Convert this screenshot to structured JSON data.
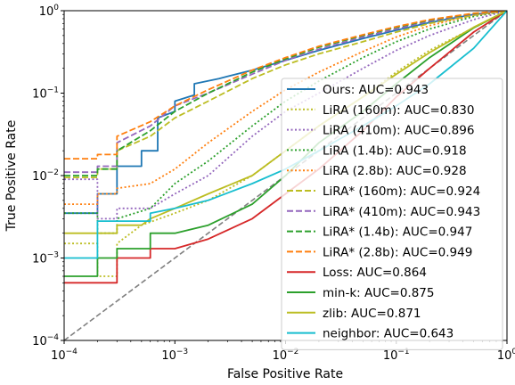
{
  "chart_data": {
    "type": "line",
    "title": "",
    "xlabel": "False Positive Rate",
    "ylabel": "True Positive Rate",
    "xscale": "log",
    "yscale": "log",
    "xlim": [
      0.0001,
      1
    ],
    "ylim": [
      0.0001,
      1
    ],
    "grid": false,
    "legend_position": "lower right",
    "xticks": [
      {
        "value": 0.0001,
        "base": "10",
        "exp": "−4"
      },
      {
        "value": 0.001,
        "base": "10",
        "exp": "−3"
      },
      {
        "value": 0.01,
        "base": "10",
        "exp": "−2"
      },
      {
        "value": 0.1,
        "base": "10",
        "exp": "−1"
      },
      {
        "value": 1,
        "base": "10",
        "exp": "0"
      }
    ],
    "yticks": [
      {
        "value": 0.0001,
        "base": "10",
        "exp": "−4"
      },
      {
        "value": 0.001,
        "base": "10",
        "exp": "−3"
      },
      {
        "value": 0.01,
        "base": "10",
        "exp": "−2"
      },
      {
        "value": 0.1,
        "base": "10",
        "exp": "−1"
      },
      {
        "value": 1,
        "base": "10",
        "exp": "0"
      }
    ],
    "diagonal": {
      "color": "#808080",
      "style": "dashed",
      "points": [
        [
          0.0001,
          0.0001
        ],
        [
          1,
          1
        ]
      ]
    },
    "series": [
      {
        "name": "Ours: AUC=0.943",
        "color": "#1f77b4",
        "style": "solid",
        "points": [
          [
            0.0001,
            0.0035
          ],
          [
            0.0002,
            0.0035
          ],
          [
            0.0002,
            0.006
          ],
          [
            0.0003,
            0.006
          ],
          [
            0.0003,
            0.013
          ],
          [
            0.0005,
            0.013
          ],
          [
            0.0005,
            0.02
          ],
          [
            0.0007,
            0.02
          ],
          [
            0.0007,
            0.05
          ],
          [
            0.001,
            0.06
          ],
          [
            0.001,
            0.08
          ],
          [
            0.0015,
            0.095
          ],
          [
            0.0015,
            0.13
          ],
          [
            0.0025,
            0.15
          ],
          [
            0.005,
            0.19
          ],
          [
            0.01,
            0.25
          ],
          [
            0.02,
            0.33
          ],
          [
            0.05,
            0.46
          ],
          [
            0.1,
            0.58
          ],
          [
            0.2,
            0.72
          ],
          [
            0.5,
            0.9
          ],
          [
            1,
            1
          ]
        ]
      },
      {
        "name": "LiRA (160m): AUC=0.830",
        "color": "#bcbd22",
        "style": "dotted",
        "points": [
          [
            0.0001,
            0.0015
          ],
          [
            0.0002,
            0.0015
          ],
          [
            0.0002,
            0.0006
          ],
          [
            0.0003,
            0.0006
          ],
          [
            0.0003,
            0.0015
          ],
          [
            0.0005,
            0.0025
          ],
          [
            0.001,
            0.0035
          ],
          [
            0.002,
            0.005
          ],
          [
            0.005,
            0.01
          ],
          [
            0.01,
            0.02
          ],
          [
            0.02,
            0.04
          ],
          [
            0.05,
            0.09
          ],
          [
            0.1,
            0.18
          ],
          [
            0.2,
            0.33
          ],
          [
            0.5,
            0.62
          ],
          [
            1,
            1
          ]
        ]
      },
      {
        "name": "LiRA (410m): AUC=0.896",
        "color": "#9467bd",
        "style": "dotted",
        "points": [
          [
            0.0001,
            0.009
          ],
          [
            0.0002,
            0.009
          ],
          [
            0.0002,
            0.003
          ],
          [
            0.0003,
            0.003
          ],
          [
            0.0003,
            0.004
          ],
          [
            0.0006,
            0.004
          ],
          [
            0.001,
            0.006
          ],
          [
            0.002,
            0.01
          ],
          [
            0.005,
            0.03
          ],
          [
            0.01,
            0.06
          ],
          [
            0.02,
            0.1
          ],
          [
            0.05,
            0.2
          ],
          [
            0.1,
            0.33
          ],
          [
            0.2,
            0.5
          ],
          [
            0.5,
            0.78
          ],
          [
            1,
            1
          ]
        ]
      },
      {
        "name": "LiRA (1.4b): AUC=0.918",
        "color": "#2ca02c",
        "style": "dotted",
        "points": [
          [
            0.0001,
            0.0035
          ],
          [
            0.0002,
            0.0035
          ],
          [
            0.0002,
            0.002
          ],
          [
            0.0003,
            0.002
          ],
          [
            0.0003,
            0.003
          ],
          [
            0.0006,
            0.004
          ],
          [
            0.001,
            0.008
          ],
          [
            0.002,
            0.015
          ],
          [
            0.005,
            0.04
          ],
          [
            0.01,
            0.08
          ],
          [
            0.02,
            0.14
          ],
          [
            0.05,
            0.27
          ],
          [
            0.1,
            0.42
          ],
          [
            0.2,
            0.6
          ],
          [
            0.5,
            0.85
          ],
          [
            1,
            1
          ]
        ]
      },
      {
        "name": "LiRA (2.8b): AUC=0.928",
        "color": "#ff7f0e",
        "style": "dotted",
        "points": [
          [
            0.0001,
            0.0045
          ],
          [
            0.0002,
            0.0045
          ],
          [
            0.0002,
            0.006
          ],
          [
            0.0003,
            0.006
          ],
          [
            0.0003,
            0.007
          ],
          [
            0.0006,
            0.008
          ],
          [
            0.001,
            0.012
          ],
          [
            0.002,
            0.025
          ],
          [
            0.005,
            0.06
          ],
          [
            0.01,
            0.11
          ],
          [
            0.02,
            0.18
          ],
          [
            0.05,
            0.32
          ],
          [
            0.1,
            0.48
          ],
          [
            0.2,
            0.66
          ],
          [
            0.5,
            0.88
          ],
          [
            1,
            1
          ]
        ]
      },
      {
        "name": "LiRA* (160m): AUC=0.924",
        "color": "#bcbd22",
        "style": "dashed",
        "points": [
          [
            0.0001,
            0.0095
          ],
          [
            0.0002,
            0.0095
          ],
          [
            0.0002,
            0.012
          ],
          [
            0.0003,
            0.012
          ],
          [
            0.0003,
            0.02
          ],
          [
            0.0006,
            0.03
          ],
          [
            0.001,
            0.05
          ],
          [
            0.002,
            0.08
          ],
          [
            0.005,
            0.15
          ],
          [
            0.01,
            0.22
          ],
          [
            0.02,
            0.3
          ],
          [
            0.05,
            0.42
          ],
          [
            0.1,
            0.55
          ],
          [
            0.2,
            0.7
          ],
          [
            0.5,
            0.88
          ],
          [
            1,
            1
          ]
        ]
      },
      {
        "name": "LiRA* (410m): AUC=0.943",
        "color": "#9467bd",
        "style": "dashed",
        "points": [
          [
            0.0001,
            0.011
          ],
          [
            0.0002,
            0.011
          ],
          [
            0.0002,
            0.013
          ],
          [
            0.0003,
            0.013
          ],
          [
            0.0003,
            0.025
          ],
          [
            0.0006,
            0.04
          ],
          [
            0.001,
            0.07
          ],
          [
            0.002,
            0.1
          ],
          [
            0.005,
            0.17
          ],
          [
            0.01,
            0.25
          ],
          [
            0.02,
            0.34
          ],
          [
            0.05,
            0.48
          ],
          [
            0.1,
            0.6
          ],
          [
            0.2,
            0.75
          ],
          [
            0.5,
            0.91
          ],
          [
            1,
            1
          ]
        ]
      },
      {
        "name": "LiRA* (1.4b): AUC=0.947",
        "color": "#2ca02c",
        "style": "dashed",
        "points": [
          [
            0.0001,
            0.01
          ],
          [
            0.0002,
            0.01
          ],
          [
            0.0002,
            0.012
          ],
          [
            0.0003,
            0.012
          ],
          [
            0.0003,
            0.02
          ],
          [
            0.0006,
            0.035
          ],
          [
            0.001,
            0.06
          ],
          [
            0.002,
            0.1
          ],
          [
            0.005,
            0.18
          ],
          [
            0.01,
            0.26
          ],
          [
            0.02,
            0.36
          ],
          [
            0.05,
            0.5
          ],
          [
            0.1,
            0.63
          ],
          [
            0.2,
            0.77
          ],
          [
            0.5,
            0.92
          ],
          [
            1,
            1
          ]
        ]
      },
      {
        "name": "LiRA* (2.8b): AUC=0.949",
        "color": "#ff7f0e",
        "style": "dashed",
        "points": [
          [
            0.0001,
            0.016
          ],
          [
            0.0002,
            0.016
          ],
          [
            0.0002,
            0.018
          ],
          [
            0.0003,
            0.018
          ],
          [
            0.0003,
            0.03
          ],
          [
            0.0006,
            0.045
          ],
          [
            0.001,
            0.07
          ],
          [
            0.002,
            0.11
          ],
          [
            0.005,
            0.19
          ],
          [
            0.01,
            0.27
          ],
          [
            0.02,
            0.37
          ],
          [
            0.05,
            0.51
          ],
          [
            0.1,
            0.64
          ],
          [
            0.2,
            0.78
          ],
          [
            0.5,
            0.93
          ],
          [
            1,
            1
          ]
        ]
      },
      {
        "name": "Loss: AUC=0.864",
        "color": "#d62728",
        "style": "solid",
        "points": [
          [
            0.0001,
            0.0005
          ],
          [
            0.0002,
            0.0005
          ],
          [
            0.0002,
            0.0005
          ],
          [
            0.0003,
            0.0005
          ],
          [
            0.0003,
            0.001
          ],
          [
            0.0006,
            0.001
          ],
          [
            0.0006,
            0.0013
          ],
          [
            0.001,
            0.0013
          ],
          [
            0.002,
            0.0017
          ],
          [
            0.005,
            0.003
          ],
          [
            0.01,
            0.006
          ],
          [
            0.02,
            0.012
          ],
          [
            0.05,
            0.035
          ],
          [
            0.1,
            0.09
          ],
          [
            0.2,
            0.2
          ],
          [
            0.5,
            0.55
          ],
          [
            1,
            1
          ]
        ]
      },
      {
        "name": "min-k: AUC=0.875",
        "color": "#2ca02c",
        "style": "solid",
        "points": [
          [
            0.0001,
            0.0006
          ],
          [
            0.0002,
            0.0006
          ],
          [
            0.0002,
            0.001
          ],
          [
            0.0003,
            0.001
          ],
          [
            0.0003,
            0.0013
          ],
          [
            0.0006,
            0.0013
          ],
          [
            0.0006,
            0.002
          ],
          [
            0.001,
            0.002
          ],
          [
            0.002,
            0.0025
          ],
          [
            0.005,
            0.0045
          ],
          [
            0.01,
            0.01
          ],
          [
            0.02,
            0.025
          ],
          [
            0.05,
            0.06
          ],
          [
            0.1,
            0.13
          ],
          [
            0.2,
            0.27
          ],
          [
            0.5,
            0.62
          ],
          [
            1,
            1
          ]
        ]
      },
      {
        "name": "zlib: AUC=0.871",
        "color": "#bcbd22",
        "style": "solid",
        "points": [
          [
            0.0001,
            0.002
          ],
          [
            0.0002,
            0.002
          ],
          [
            0.0002,
            0.002
          ],
          [
            0.0003,
            0.002
          ],
          [
            0.0003,
            0.0025
          ],
          [
            0.0005,
            0.0025
          ],
          [
            0.0006,
            0.003
          ],
          [
            0.001,
            0.004
          ],
          [
            0.002,
            0.006
          ],
          [
            0.005,
            0.01
          ],
          [
            0.01,
            0.02
          ],
          [
            0.02,
            0.04
          ],
          [
            0.05,
            0.09
          ],
          [
            0.1,
            0.17
          ],
          [
            0.2,
            0.31
          ],
          [
            0.5,
            0.63
          ],
          [
            1,
            1
          ]
        ]
      },
      {
        "name": "neighbor: AUC=0.643",
        "color": "#17becf",
        "style": "solid",
        "points": [
          [
            0.0001,
            0.001
          ],
          [
            0.0002,
            0.001
          ],
          [
            0.0002,
            0.0028
          ],
          [
            0.0006,
            0.0028
          ],
          [
            0.0006,
            0.0035
          ],
          [
            0.001,
            0.004
          ],
          [
            0.002,
            0.005
          ],
          [
            0.005,
            0.008
          ],
          [
            0.01,
            0.012
          ],
          [
            0.02,
            0.02
          ],
          [
            0.05,
            0.04
          ],
          [
            0.1,
            0.07
          ],
          [
            0.2,
            0.13
          ],
          [
            0.5,
            0.35
          ],
          [
            1,
            1
          ]
        ]
      }
    ]
  }
}
